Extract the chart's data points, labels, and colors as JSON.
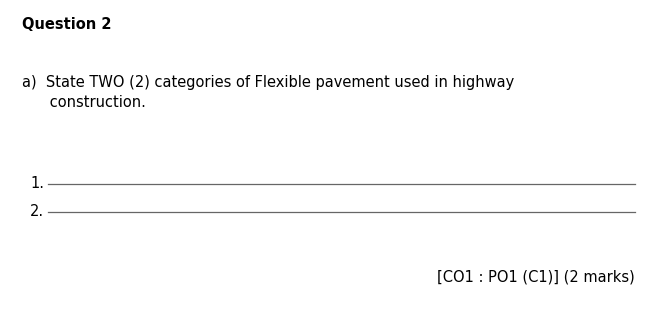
{
  "background_color": "#ffffff",
  "title": "Question 2",
  "title_fontsize": 10.5,
  "title_fontweight": "bold",
  "question_text_line1": "a)  State TWO (2) categories of Flexible pavement used in highway",
  "question_text_line2": "      construction.",
  "question_fontsize": 10.5,
  "label1": "1.",
  "label2": "2.",
  "line_color": "#666666",
  "line_width": 0.9,
  "marks_text": "[CO1 : PO1 (C1)] (2 marks)",
  "marks_fontsize": 10.5
}
